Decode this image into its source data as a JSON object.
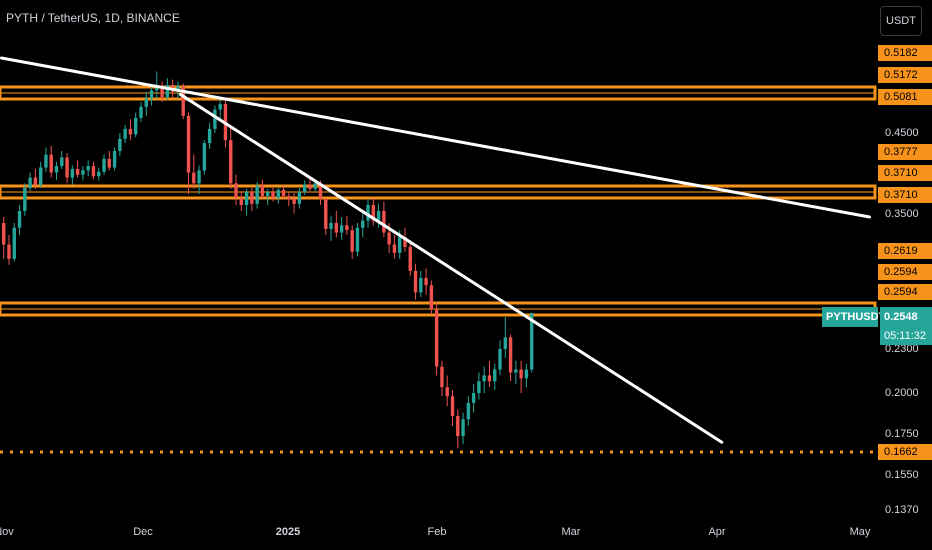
{
  "header": {
    "title": "PYTH / TetherUS, 1D, BINANCE",
    "currency_button": "USDT"
  },
  "price_badge": {
    "symbol": "PYTHUSDT",
    "price": "0.2548",
    "countdown": "05:11:32"
  },
  "colors": {
    "background": "#000000",
    "up": "#26a69a",
    "down": "#ef5350",
    "level": "#f7931a",
    "trendline": "#ffffff",
    "axis_text": "#d1d4dc"
  },
  "chart_data": {
    "type": "candlestick",
    "title": "PYTH / TetherUS, 1D, BINANCE",
    "y_axis_labels": [
      "0.5182",
      "0.5172",
      "0.5081",
      "0.4500",
      "0.3777",
      "0.3710",
      "0.3710",
      "0.3500",
      "0.2619",
      "0.2594",
      "0.2594",
      "0.2548",
      "0.2300",
      "0.2000",
      "0.1750",
      "0.1662",
      "0.1550",
      "0.1370"
    ],
    "y_tick_values": [
      0.45,
      0.35,
      0.23,
      0.2,
      0.175,
      0.155,
      0.137
    ],
    "x_axis_labels": [
      {
        "label": "Nov",
        "date": "2024-11-01"
      },
      {
        "label": "Dec",
        "date": "2024-12-01"
      },
      {
        "label": "2025",
        "date": "2025-01-01"
      },
      {
        "label": "Feb",
        "date": "2025-02-01"
      },
      {
        "label": "Mar",
        "date": "2025-03-01"
      },
      {
        "label": "Apr",
        "date": "2025-04-01"
      },
      {
        "label": "May",
        "date": "2025-05-01"
      }
    ],
    "horizontal_levels": [
      {
        "label": "0.5182 / 0.5081 zone",
        "low": 0.5081,
        "high": 0.5182
      },
      {
        "label": "0.3777 / 0.3710 zone",
        "low": 0.371,
        "high": 0.3777
      },
      {
        "label": "0.2619 / 0.2594 zone",
        "low": 0.2594,
        "high": 0.2619
      },
      {
        "label": "0.1662 dotted support",
        "value": 0.1662,
        "style": "dotted"
      }
    ],
    "trendlines": [
      {
        "from": {
          "date": "2024-10-31",
          "price": 0.56
        },
        "to": {
          "date": "2025-05-03",
          "price": 0.335
        }
      },
      {
        "from": {
          "date": "2024-12-09",
          "price": 0.506
        },
        "to": {
          "date": "2025-04-02",
          "price": 0.171
        }
      }
    ],
    "candles": [
      [
        0.33,
        0.335,
        0.3,
        0.312
      ],
      [
        0.312,
        0.32,
        0.295,
        0.3
      ],
      [
        0.3,
        0.33,
        0.298,
        0.326
      ],
      [
        0.326,
        0.345,
        0.32,
        0.34
      ],
      [
        0.34,
        0.38,
        0.336,
        0.372
      ],
      [
        0.372,
        0.395,
        0.366,
        0.388
      ],
      [
        0.388,
        0.4,
        0.37,
        0.378
      ],
      [
        0.378,
        0.41,
        0.372,
        0.402
      ],
      [
        0.402,
        0.43,
        0.396,
        0.42
      ],
      [
        0.42,
        0.432,
        0.388,
        0.395
      ],
      [
        0.395,
        0.41,
        0.385,
        0.404
      ],
      [
        0.404,
        0.425,
        0.4,
        0.416
      ],
      [
        0.416,
        0.422,
        0.38,
        0.388
      ],
      [
        0.388,
        0.405,
        0.378,
        0.4
      ],
      [
        0.4,
        0.412,
        0.388,
        0.392
      ],
      [
        0.392,
        0.404,
        0.384,
        0.398
      ],
      [
        0.398,
        0.412,
        0.39,
        0.404
      ],
      [
        0.404,
        0.41,
        0.386,
        0.39
      ],
      [
        0.39,
        0.402,
        0.384,
        0.396
      ],
      [
        0.396,
        0.42,
        0.392,
        0.414
      ],
      [
        0.414,
        0.425,
        0.398,
        0.402
      ],
      [
        0.402,
        0.43,
        0.398,
        0.425
      ],
      [
        0.425,
        0.45,
        0.418,
        0.442
      ],
      [
        0.442,
        0.462,
        0.436,
        0.456
      ],
      [
        0.456,
        0.47,
        0.44,
        0.448
      ],
      [
        0.448,
        0.48,
        0.444,
        0.472
      ],
      [
        0.472,
        0.495,
        0.466,
        0.488
      ],
      [
        0.488,
        0.51,
        0.475,
        0.5
      ],
      [
        0.5,
        0.52,
        0.49,
        0.512
      ],
      [
        0.512,
        0.54,
        0.5,
        0.515
      ],
      [
        0.515,
        0.525,
        0.495,
        0.502
      ],
      [
        0.502,
        0.53,
        0.498,
        0.52
      ],
      [
        0.52,
        0.528,
        0.5,
        0.51
      ],
      [
        0.51,
        0.525,
        0.5,
        0.518
      ],
      [
        0.518,
        0.522,
        0.47,
        0.475
      ],
      [
        0.475,
        0.48,
        0.36,
        0.395
      ],
      [
        0.395,
        0.42,
        0.37,
        0.38
      ],
      [
        0.38,
        0.405,
        0.36,
        0.398
      ],
      [
        0.398,
        0.44,
        0.392,
        0.436
      ],
      [
        0.436,
        0.465,
        0.428,
        0.456
      ],
      [
        0.456,
        0.49,
        0.45,
        0.484
      ],
      [
        0.484,
        0.5,
        0.47,
        0.492
      ],
      [
        0.492,
        0.5,
        0.43,
        0.44
      ],
      [
        0.44,
        0.46,
        0.37,
        0.38
      ],
      [
        0.38,
        0.392,
        0.345,
        0.352
      ],
      [
        0.352,
        0.365,
        0.34,
        0.345
      ],
      [
        0.345,
        0.37,
        0.336,
        0.364
      ],
      [
        0.364,
        0.372,
        0.34,
        0.346
      ],
      [
        0.346,
        0.382,
        0.342,
        0.376
      ],
      [
        0.376,
        0.385,
        0.35,
        0.356
      ],
      [
        0.356,
        0.37,
        0.345,
        0.364
      ],
      [
        0.364,
        0.372,
        0.348,
        0.352
      ],
      [
        0.352,
        0.372,
        0.346,
        0.368
      ],
      [
        0.368,
        0.376,
        0.35,
        0.356
      ],
      [
        0.356,
        0.364,
        0.344,
        0.35
      ],
      [
        0.35,
        0.362,
        0.338,
        0.346
      ],
      [
        0.346,
        0.372,
        0.342,
        0.364
      ],
      [
        0.364,
        0.384,
        0.358,
        0.378
      ],
      [
        0.378,
        0.386,
        0.366,
        0.37
      ],
      [
        0.37,
        0.384,
        0.364,
        0.38
      ],
      [
        0.38,
        0.384,
        0.345,
        0.35
      ],
      [
        0.35,
        0.352,
        0.32,
        0.325
      ],
      [
        0.325,
        0.336,
        0.315,
        0.33
      ],
      [
        0.33,
        0.34,
        0.318,
        0.322
      ],
      [
        0.322,
        0.335,
        0.316,
        0.328
      ],
      [
        0.328,
        0.336,
        0.32,
        0.324
      ],
      [
        0.324,
        0.328,
        0.3,
        0.306
      ],
      [
        0.306,
        0.33,
        0.302,
        0.326
      ],
      [
        0.326,
        0.338,
        0.318,
        0.332
      ],
      [
        0.332,
        0.35,
        0.326,
        0.345
      ],
      [
        0.345,
        0.352,
        0.328,
        0.332
      ],
      [
        0.332,
        0.346,
        0.326,
        0.34
      ],
      [
        0.34,
        0.348,
        0.318,
        0.322
      ],
      [
        0.322,
        0.33,
        0.305,
        0.312
      ],
      [
        0.312,
        0.32,
        0.3,
        0.305
      ],
      [
        0.305,
        0.324,
        0.3,
        0.318
      ],
      [
        0.318,
        0.326,
        0.306,
        0.31
      ],
      [
        0.31,
        0.314,
        0.286,
        0.29
      ],
      [
        0.29,
        0.296,
        0.266,
        0.272
      ],
      [
        0.272,
        0.29,
        0.268,
        0.284
      ],
      [
        0.284,
        0.292,
        0.27,
        0.278
      ],
      [
        0.278,
        0.282,
        0.254,
        0.258
      ],
      [
        0.258,
        0.264,
        0.212,
        0.218
      ],
      [
        0.218,
        0.222,
        0.198,
        0.204
      ],
      [
        0.204,
        0.212,
        0.192,
        0.198
      ],
      [
        0.198,
        0.202,
        0.18,
        0.186
      ],
      [
        0.186,
        0.19,
        0.168,
        0.174
      ],
      [
        0.174,
        0.188,
        0.17,
        0.184
      ],
      [
        0.184,
        0.198,
        0.18,
        0.194
      ],
      [
        0.194,
        0.206,
        0.188,
        0.2
      ],
      [
        0.2,
        0.214,
        0.196,
        0.208
      ],
      [
        0.208,
        0.218,
        0.2,
        0.212
      ],
      [
        0.212,
        0.222,
        0.204,
        0.208
      ],
      [
        0.208,
        0.22,
        0.202,
        0.216
      ],
      [
        0.216,
        0.236,
        0.212,
        0.23
      ],
      [
        0.23,
        0.252,
        0.224,
        0.238
      ],
      [
        0.238,
        0.24,
        0.208,
        0.214
      ],
      [
        0.214,
        0.222,
        0.206,
        0.216
      ],
      [
        0.216,
        0.222,
        0.2,
        0.21
      ],
      [
        0.21,
        0.22,
        0.204,
        0.216
      ],
      [
        0.216,
        0.255,
        0.214,
        0.2548
      ]
    ]
  }
}
